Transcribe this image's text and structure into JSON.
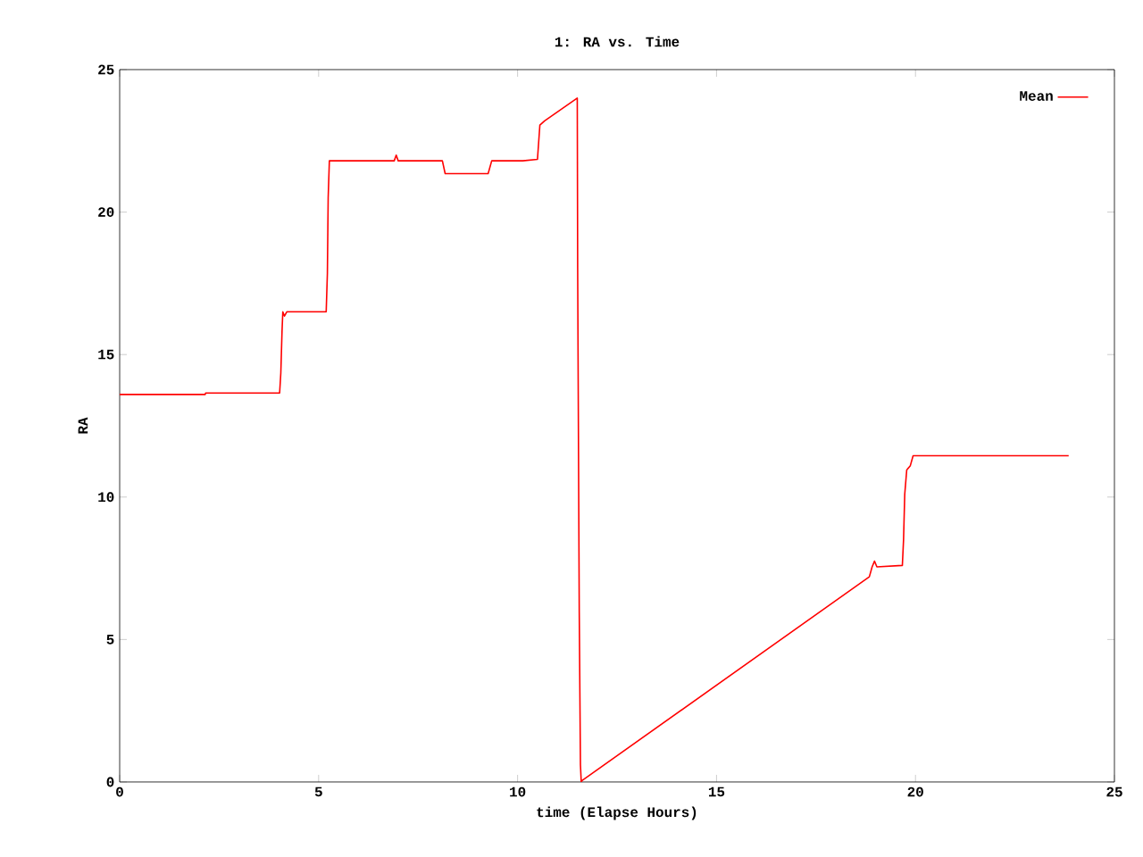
{
  "chart_data": {
    "type": "line",
    "title": "1: RA vs. Time",
    "xlabel": "time (Elapse Hours)",
    "ylabel": "RA",
    "x": [
      0,
      2.15,
      2.16,
      4.02,
      4.05,
      4.08,
      4.1,
      4.14,
      4.2,
      5.19,
      5.22,
      5.24,
      5.27,
      6.9,
      6.95,
      7.0,
      8.11,
      8.18,
      9.26,
      9.35,
      10.13,
      10.5,
      10.56,
      10.68,
      11.5,
      11.51,
      11.55,
      11.58,
      11.6,
      11.62,
      18.84,
      18.91,
      18.97,
      19.03,
      19.67,
      19.7,
      19.73,
      19.78,
      19.87,
      19.94,
      23.85
    ],
    "series": [
      {
        "name": "Mean",
        "color": "#ff0000",
        "values": [
          13.6,
          13.6,
          13.65,
          13.65,
          14.35,
          15.8,
          16.5,
          16.35,
          16.5,
          16.5,
          17.85,
          20.5,
          21.8,
          21.8,
          22.0,
          21.8,
          21.8,
          21.35,
          21.35,
          21.8,
          21.8,
          21.85,
          23.05,
          23.2,
          24.0,
          18.05,
          5.95,
          0.6,
          0,
          0.05,
          7.2,
          7.55,
          7.75,
          7.55,
          7.6,
          8.5,
          10.1,
          10.95,
          11.1,
          11.45,
          11.45
        ]
      }
    ],
    "xlim": [
      0,
      25
    ],
    "ylim": [
      0,
      25
    ],
    "xticks": [
      0,
      5,
      10,
      15,
      20,
      25
    ],
    "yticks": [
      0,
      5,
      10,
      15,
      20,
      25
    ],
    "legend": "top right",
    "grid": false
  }
}
